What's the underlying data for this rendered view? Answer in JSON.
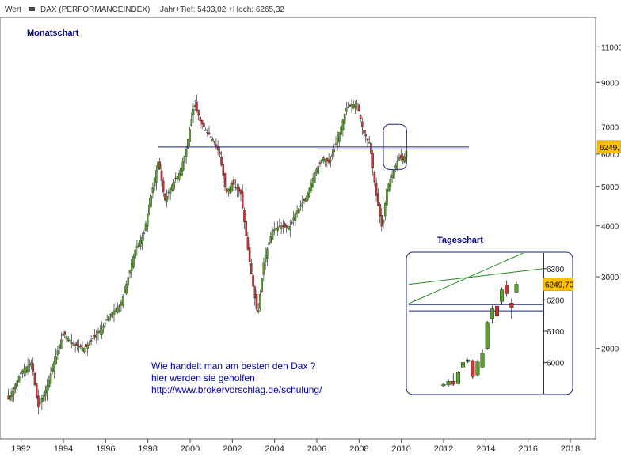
{
  "header": {
    "prefix": "Wert",
    "series_label": "DAX (PERFORMANCEINDEX)",
    "range_text": "Jahr+Tief: 5433,02 +Hoch: 6265,32"
  },
  "chart_data": [
    {
      "type": "candlestick",
      "title": "Monatschart",
      "y_scale": "log",
      "ylim": [
        1200,
        13000
      ],
      "y_ticks": [
        2000,
        3000,
        4000,
        5000,
        6000,
        7000,
        9000,
        11000
      ],
      "x_ticks": [
        1992,
        1994,
        1996,
        1998,
        2000,
        2002,
        2004,
        2006,
        2008,
        2010,
        2012,
        2014,
        2016,
        2018
      ],
      "xlim": [
        1991.0,
        2019.2
      ],
      "last_value_label": "6249,",
      "horizontal_lines": [
        {
          "from": 1998.5,
          "to": 2013.2,
          "y": 6250
        },
        {
          "from": 2006.0,
          "to": 2013.2,
          "y": 6180
        }
      ],
      "highlight_box": {
        "x_from": 2009.15,
        "x_to": 2010.25,
        "y_from": 5500,
        "y_to": 7100
      },
      "key_points": [
        {
          "x": 1991.4,
          "y": 1500
        },
        {
          "x": 1992.0,
          "y": 1750
        },
        {
          "x": 1992.5,
          "y": 1850
        },
        {
          "x": 1992.8,
          "y": 1430
        },
        {
          "x": 1993.2,
          "y": 1600
        },
        {
          "x": 1993.6,
          "y": 1880
        },
        {
          "x": 1994.0,
          "y": 2180
        },
        {
          "x": 1994.5,
          "y": 2050
        },
        {
          "x": 1995.0,
          "y": 2000
        },
        {
          "x": 1995.3,
          "y": 2080
        },
        {
          "x": 1995.8,
          "y": 2230
        },
        {
          "x": 1996.2,
          "y": 2420
        },
        {
          "x": 1996.7,
          "y": 2560
        },
        {
          "x": 1997.0,
          "y": 2900
        },
        {
          "x": 1997.4,
          "y": 3500
        },
        {
          "x": 1997.8,
          "y": 3800
        },
        {
          "x": 1998.1,
          "y": 4600
        },
        {
          "x": 1998.5,
          "y": 5800
        },
        {
          "x": 1998.8,
          "y": 4600
        },
        {
          "x": 1999.1,
          "y": 5000
        },
        {
          "x": 1999.5,
          "y": 5400
        },
        {
          "x": 1999.8,
          "y": 6100
        },
        {
          "x": 2000.2,
          "y": 8000
        },
        {
          "x": 2000.5,
          "y": 7200
        },
        {
          "x": 2000.8,
          "y": 6800
        },
        {
          "x": 2001.1,
          "y": 6500
        },
        {
          "x": 2001.4,
          "y": 6000
        },
        {
          "x": 2001.7,
          "y": 4800
        },
        {
          "x": 2002.0,
          "y": 5100
        },
        {
          "x": 2002.4,
          "y": 4800
        },
        {
          "x": 2002.7,
          "y": 3600
        },
        {
          "x": 2003.0,
          "y": 2800
        },
        {
          "x": 2003.2,
          "y": 2400
        },
        {
          "x": 2003.5,
          "y": 3300
        },
        {
          "x": 2003.9,
          "y": 3900
        },
        {
          "x": 2004.3,
          "y": 4000
        },
        {
          "x": 2004.7,
          "y": 3950
        },
        {
          "x": 2005.0,
          "y": 4300
        },
        {
          "x": 2005.5,
          "y": 4700
        },
        {
          "x": 2005.9,
          "y": 5400
        },
        {
          "x": 2006.3,
          "y": 5900
        },
        {
          "x": 2006.6,
          "y": 5700
        },
        {
          "x": 2007.0,
          "y": 6600
        },
        {
          "x": 2007.4,
          "y": 7800
        },
        {
          "x": 2007.9,
          "y": 8000
        },
        {
          "x": 2008.2,
          "y": 6800
        },
        {
          "x": 2008.5,
          "y": 6400
        },
        {
          "x": 2008.8,
          "y": 4800
        },
        {
          "x": 2009.1,
          "y": 3900
        },
        {
          "x": 2009.3,
          "y": 4900
        },
        {
          "x": 2009.6,
          "y": 5400
        },
        {
          "x": 2009.9,
          "y": 5900
        },
        {
          "x": 2010.1,
          "y": 5800
        },
        {
          "x": 2010.3,
          "y": 6250
        }
      ]
    },
    {
      "type": "candlestick",
      "title": "Tageschart",
      "y_ticks": [
        6000,
        6100,
        6200,
        6300
      ],
      "ylim": [
        5905,
        6345
      ],
      "last_value_label": "6249,70",
      "horizontal_lines": [
        6185,
        6165
      ],
      "trend_lines": [
        {
          "from": [
            0.0,
            6250
          ],
          "to": [
            1.0,
            6300
          ]
        },
        {
          "from": [
            0.0,
            6188
          ],
          "to": [
            0.85,
            6350
          ]
        }
      ],
      "candles": [
        {
          "o": 5925,
          "h": 5935,
          "l": 5920,
          "c": 5930
        },
        {
          "o": 5928,
          "h": 5948,
          "l": 5922,
          "c": 5940
        },
        {
          "o": 5940,
          "h": 5965,
          "l": 5925,
          "c": 5930
        },
        {
          "o": 5932,
          "h": 5972,
          "l": 5930,
          "c": 5968
        },
        {
          "o": 5985,
          "h": 6005,
          "l": 5980,
          "c": 6000
        },
        {
          "o": 6003,
          "h": 6012,
          "l": 5998,
          "c": 6008
        },
        {
          "o": 6006,
          "h": 6010,
          "l": 5948,
          "c": 5955
        },
        {
          "o": 5960,
          "h": 6008,
          "l": 5955,
          "c": 6002
        },
        {
          "o": 5985,
          "h": 6040,
          "l": 5980,
          "c": 6030
        },
        {
          "o": 6045,
          "h": 6133,
          "l": 6040,
          "c": 6128
        },
        {
          "o": 6140,
          "h": 6182,
          "l": 6125,
          "c": 6172
        },
        {
          "o": 6180,
          "h": 6188,
          "l": 6132,
          "c": 6148
        },
        {
          "o": 6195,
          "h": 6240,
          "l": 6186,
          "c": 6232
        },
        {
          "o": 6248,
          "h": 6262,
          "l": 6210,
          "c": 6220
        },
        {
          "o": 6190,
          "h": 6205,
          "l": 6140,
          "c": 6175
        },
        {
          "o": 6225,
          "h": 6258,
          "l": 6222,
          "c": 6250
        }
      ]
    }
  ],
  "annotation": {
    "line1": "Wie handelt man am besten  den Dax ?",
    "line2": "hier werden sie geholfen",
    "line3": "http://www.brokervorschlag.de/schulung/"
  },
  "colors": {
    "up": "#5aa02c",
    "down": "#cc3333",
    "frame": "#1a237e",
    "title": "#000080",
    "trend": "#228b22",
    "badge": "#ffc000"
  }
}
